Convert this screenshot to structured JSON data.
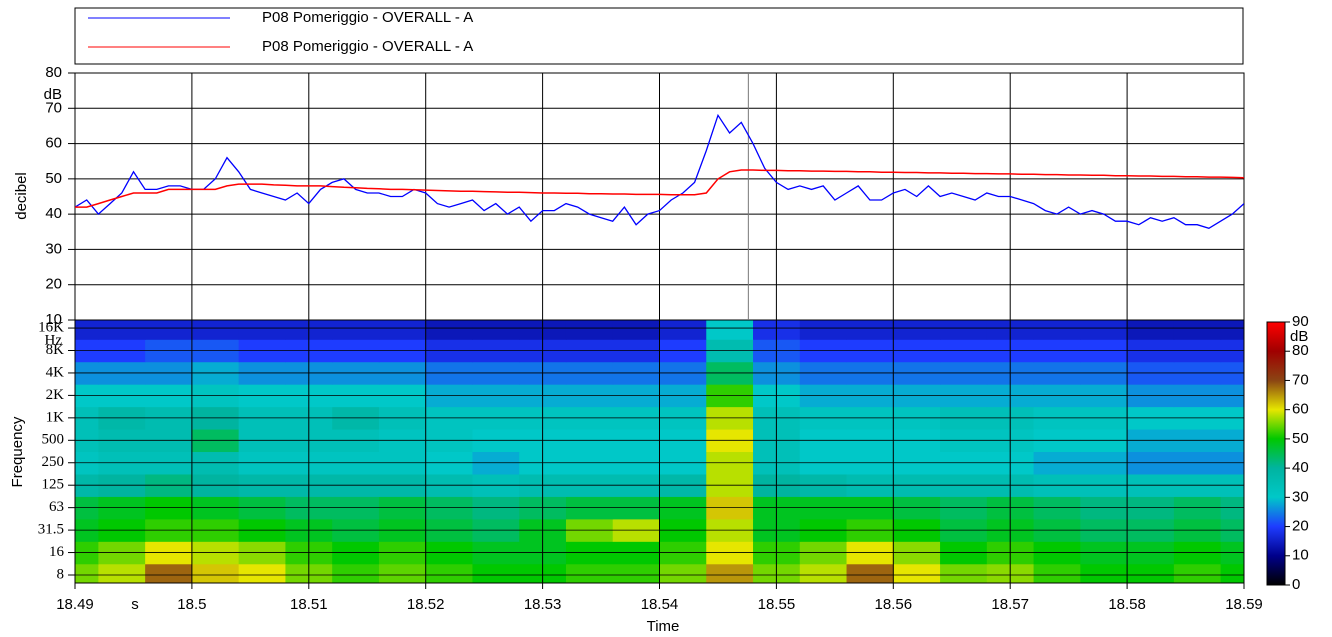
{
  "chart_data": [
    {
      "type": "line",
      "ylabel": "decibel",
      "yunit": "dB",
      "xlim": [
        18.49,
        18.59
      ],
      "xticks": [
        18.49,
        18.5,
        18.51,
        18.52,
        18.53,
        18.54,
        18.55,
        18.56,
        18.57,
        18.58,
        18.59
      ],
      "ylim": [
        10,
        80
      ],
      "yticks": [
        10,
        20,
        30,
        40,
        50,
        60,
        70,
        80
      ],
      "grid": true,
      "cursor": 18.5476,
      "x": [
        18.49,
        18.491,
        18.492,
        18.493,
        18.494,
        18.495,
        18.496,
        18.497,
        18.498,
        18.499,
        18.5,
        18.501,
        18.502,
        18.503,
        18.504,
        18.505,
        18.506,
        18.507,
        18.508,
        18.509,
        18.51,
        18.511,
        18.512,
        18.513,
        18.514,
        18.515,
        18.516,
        18.517,
        18.518,
        18.519,
        18.52,
        18.521,
        18.522,
        18.523,
        18.524,
        18.525,
        18.526,
        18.527,
        18.528,
        18.529,
        18.53,
        18.531,
        18.532,
        18.533,
        18.534,
        18.535,
        18.536,
        18.537,
        18.538,
        18.539,
        18.54,
        18.541,
        18.542,
        18.543,
        18.544,
        18.545,
        18.546,
        18.547,
        18.548,
        18.549,
        18.55,
        18.551,
        18.552,
        18.553,
        18.554,
        18.555,
        18.556,
        18.557,
        18.558,
        18.559,
        18.56,
        18.561,
        18.562,
        18.563,
        18.564,
        18.565,
        18.566,
        18.567,
        18.568,
        18.569,
        18.57,
        18.571,
        18.572,
        18.573,
        18.574,
        18.575,
        18.576,
        18.577,
        18.578,
        18.579,
        18.58,
        18.581,
        18.582,
        18.583,
        18.584,
        18.585,
        18.586,
        18.587,
        18.588,
        18.589,
        18.59
      ],
      "series": [
        {
          "name": "P08 Pomeriggio - OVERALL - A",
          "color": "#0000ff",
          "values": [
            42,
            44,
            40,
            43,
            46,
            52,
            47,
            47,
            48,
            48,
            47,
            47,
            50,
            56,
            52,
            47,
            46,
            45,
            44,
            46,
            43,
            47,
            49,
            50,
            47,
            46,
            46,
            45,
            45,
            47,
            46,
            43,
            42,
            43,
            44,
            41,
            43,
            40,
            42,
            38,
            41,
            41,
            43,
            42,
            40,
            39,
            38,
            42,
            37,
            40,
            41,
            44,
            46,
            49,
            58,
            68,
            63,
            66,
            60,
            53,
            49,
            47,
            48,
            47,
            48,
            44,
            46,
            48,
            44,
            44,
            46,
            47,
            45,
            48,
            45,
            46,
            45,
            44,
            46,
            45,
            45,
            44,
            43,
            41,
            40,
            42,
            40,
            41,
            40,
            38,
            38,
            37,
            39,
            38,
            39,
            37,
            37,
            36,
            38,
            40,
            43
          ]
        },
        {
          "name": "P08 Pomeriggio - OVERALL - A",
          "color": "#ff0000",
          "values": [
            42,
            42,
            43,
            44,
            45,
            46,
            46,
            46,
            47,
            47,
            47,
            47,
            47,
            48,
            48.5,
            48.5,
            48.5,
            48.3,
            48.2,
            48,
            48,
            48,
            47.8,
            47.6,
            47.5,
            47.3,
            47.2,
            47,
            47,
            46.9,
            46.8,
            46.7,
            46.6,
            46.5,
            46.5,
            46.4,
            46.3,
            46.2,
            46.2,
            46.1,
            46,
            46,
            45.9,
            45.9,
            45.8,
            45.8,
            45.7,
            45.7,
            45.6,
            45.6,
            45.6,
            45.5,
            45.5,
            45.5,
            46,
            50,
            52,
            52.5,
            52.5,
            52.4,
            52.4,
            52.3,
            52.3,
            52.2,
            52.2,
            52.1,
            52.1,
            52,
            52,
            51.9,
            51.9,
            51.8,
            51.8,
            51.7,
            51.7,
            51.6,
            51.6,
            51.5,
            51.5,
            51.4,
            51.4,
            51.3,
            51.3,
            51.2,
            51.2,
            51.1,
            51.1,
            51,
            51,
            50.9,
            50.9,
            50.8,
            50.8,
            50.7,
            50.7,
            50.6,
            50.6,
            50.5,
            50.5,
            50.4,
            50.3
          ]
        }
      ]
    },
    {
      "type": "heatmap",
      "ylabel": "Frequency",
      "yunit": "Hz",
      "xlabel": "Time",
      "xunit": "s",
      "xlim": [
        18.49,
        18.59
      ],
      "xticks": [
        18.49,
        18.5,
        18.51,
        18.52,
        18.53,
        18.54,
        18.55,
        18.56,
        18.57,
        18.58,
        18.59
      ],
      "x": [
        18.49,
        18.494,
        18.498,
        18.502,
        18.506,
        18.51,
        18.514,
        18.518,
        18.522,
        18.526,
        18.53,
        18.534,
        18.538,
        18.542,
        18.546,
        18.55,
        18.554,
        18.558,
        18.562,
        18.566,
        18.57,
        18.574,
        18.578,
        18.582,
        18.586,
        18.59
      ],
      "categories": [
        "8",
        "16",
        "31.5",
        "63",
        "125",
        "250",
        "500",
        "1K",
        "2K",
        "4K",
        "8K",
        "16K"
      ],
      "z": [
        [
          55,
          58,
          68,
          62,
          60,
          55,
          52,
          54,
          52,
          50,
          50,
          52,
          52,
          55,
          65,
          55,
          58,
          68,
          60,
          55,
          56,
          52,
          50,
          50,
          52,
          50
        ],
        [
          52,
          55,
          60,
          58,
          56,
          52,
          50,
          52,
          50,
          48,
          48,
          50,
          50,
          52,
          60,
          52,
          55,
          60,
          56,
          50,
          52,
          50,
          48,
          48,
          50,
          48
        ],
        [
          48,
          50,
          52,
          52,
          50,
          48,
          46,
          48,
          46,
          44,
          48,
          55,
          58,
          50,
          58,
          48,
          50,
          52,
          50,
          46,
          48,
          46,
          44,
          44,
          46,
          44
        ],
        [
          46,
          48,
          50,
          48,
          46,
          44,
          44,
          46,
          44,
          42,
          44,
          46,
          46,
          48,
          62,
          48,
          48,
          48,
          46,
          44,
          46,
          44,
          42,
          42,
          44,
          42
        ],
        [
          38,
          40,
          42,
          40,
          38,
          38,
          38,
          38,
          36,
          34,
          36,
          36,
          36,
          38,
          58,
          40,
          38,
          36,
          36,
          36,
          36,
          34,
          34,
          34,
          34,
          34
        ],
        [
          32,
          34,
          34,
          36,
          32,
          32,
          32,
          32,
          30,
          28,
          30,
          30,
          30,
          30,
          58,
          34,
          30,
          30,
          30,
          30,
          30,
          28,
          28,
          26,
          26,
          26
        ],
        [
          34,
          36,
          36,
          44,
          34,
          34,
          34,
          32,
          32,
          30,
          30,
          30,
          30,
          30,
          60,
          34,
          30,
          30,
          30,
          32,
          32,
          30,
          30,
          28,
          28,
          28
        ],
        [
          34,
          38,
          36,
          40,
          34,
          34,
          38,
          34,
          32,
          32,
          32,
          32,
          32,
          32,
          58,
          34,
          32,
          32,
          32,
          34,
          34,
          32,
          32,
          30,
          30,
          30
        ],
        [
          30,
          30,
          30,
          32,
          30,
          30,
          30,
          30,
          28,
          28,
          28,
          28,
          28,
          28,
          52,
          30,
          28,
          28,
          28,
          28,
          28,
          28,
          28,
          26,
          26,
          26
        ],
        [
          26,
          26,
          26,
          28,
          26,
          26,
          26,
          26,
          24,
          24,
          24,
          24,
          24,
          24,
          44,
          26,
          24,
          24,
          24,
          24,
          24,
          24,
          24,
          22,
          22,
          22
        ],
        [
          20,
          20,
          22,
          22,
          20,
          20,
          20,
          20,
          18,
          18,
          18,
          18,
          18,
          20,
          36,
          22,
          20,
          20,
          20,
          20,
          20,
          20,
          20,
          18,
          18,
          18
        ],
        [
          16,
          16,
          16,
          16,
          16,
          16,
          16,
          16,
          14,
          14,
          14,
          14,
          14,
          16,
          30,
          18,
          16,
          16,
          16,
          16,
          16,
          16,
          16,
          14,
          14,
          14
        ]
      ],
      "zunit": "dB",
      "zlim": [
        0,
        90
      ],
      "zticks": [
        0,
        10,
        20,
        30,
        40,
        50,
        60,
        70,
        80,
        90
      ],
      "colorscale": [
        "#000000",
        "#00008b",
        "#1e3cff",
        "#00c8c8",
        "#00b4a0",
        "#00c800",
        "#e6e600",
        "#8b4513",
        "#a00000",
        "#ff0000"
      ]
    }
  ]
}
